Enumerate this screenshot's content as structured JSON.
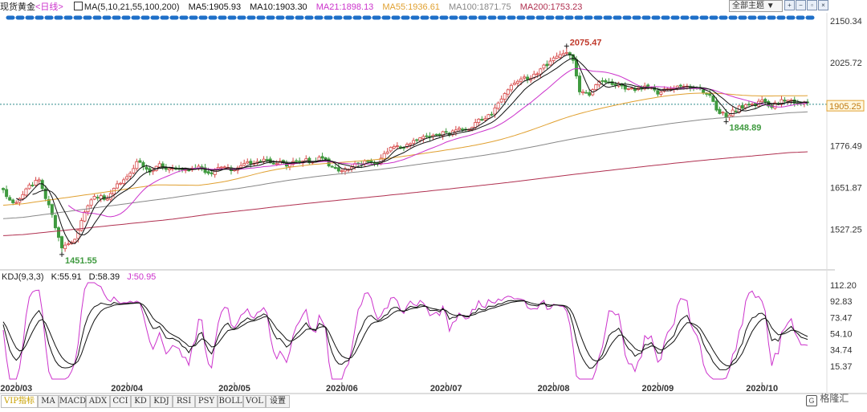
{
  "header": {
    "symbol": "现货黄金",
    "period": "<日线>",
    "ma_label": "MA(5,10,21,55,100,200)",
    "ma5": "MA5:1905.93",
    "ma10": "MA10:1903.30",
    "ma21": "MA21:1898.13",
    "ma55": "MA55:1936.61",
    "ma100": "MA100:1871.75",
    "ma200": "MA200:1753.23",
    "theme_select": "全部主题",
    "colors": {
      "ma5": "#111111",
      "ma10": "#111111",
      "ma21": "#cc33cc",
      "ma55": "#e0a030",
      "ma100": "#888888",
      "ma200": "#b03050"
    }
  },
  "kdj_header": {
    "label": "KDJ(9,3,3)",
    "k": "K:55.91",
    "d": "D:58.39",
    "j": "J:50.95",
    "colors": {
      "k": "#111111",
      "d": "#111111",
      "j": "#cc33cc"
    }
  },
  "tabs": [
    "VIP指标",
    "MA",
    "MACD",
    "ADX",
    "CCI",
    "KD",
    "KDJ",
    "RSI",
    "PSY",
    "BOLL",
    "VOL",
    "设置"
  ],
  "watermark": "格隆汇",
  "chart_data": {
    "type": "candlestick",
    "price_axis": {
      "ticks": [
        "2150.34",
        "2025.72",
        "1901.10",
        "1776.49",
        "1651.87",
        "1527.25"
      ],
      "ylim": [
        1420,
        2170
      ],
      "current_price": "1905.25",
      "reference_line": "1901.10"
    },
    "kdj_axis": {
      "ticks": [
        "112.20",
        "92.83",
        "73.47",
        "54.10",
        "34.74",
        "15.37"
      ],
      "ylim": [
        0,
        115
      ]
    },
    "x_labels": [
      "2020/03",
      "2020/04",
      "2020/05",
      "2020/06",
      "2020/07",
      "2020/08",
      "2020/09",
      "2020/10"
    ],
    "x_label_index": [
      4,
      38,
      71,
      104,
      136,
      169,
      201,
      233
    ],
    "annotations": [
      {
        "label": "2075.47",
        "index": 173,
        "value": 2075.47,
        "type": "high"
      },
      {
        "label": "1451.55",
        "index": 18,
        "value": 1451.55,
        "type": "low"
      },
      {
        "label": "1848.89",
        "index": 222,
        "value": 1848.89,
        "type": "low"
      }
    ],
    "anchors": [
      [
        0,
        1640
      ],
      [
        3,
        1600
      ],
      [
        7,
        1650
      ],
      [
        11,
        1680
      ],
      [
        15,
        1565
      ],
      [
        18,
        1470
      ],
      [
        22,
        1500
      ],
      [
        25,
        1580
      ],
      [
        28,
        1630
      ],
      [
        32,
        1615
      ],
      [
        35,
        1660
      ],
      [
        39,
        1690
      ],
      [
        41,
        1735
      ],
      [
        45,
        1700
      ],
      [
        48,
        1720
      ],
      [
        52,
        1705
      ],
      [
        56,
        1700
      ],
      [
        60,
        1710
      ],
      [
        63,
        1695
      ],
      [
        67,
        1715
      ],
      [
        71,
        1705
      ],
      [
        75,
        1725
      ],
      [
        79,
        1735
      ],
      [
        83,
        1730
      ],
      [
        87,
        1720
      ],
      [
        91,
        1735
      ],
      [
        95,
        1730
      ],
      [
        98,
        1740
      ],
      [
        101,
        1715
      ],
      [
        104,
        1700
      ],
      [
        107,
        1715
      ],
      [
        111,
        1725
      ],
      [
        115,
        1730
      ],
      [
        118,
        1765
      ],
      [
        121,
        1770
      ],
      [
        124,
        1775
      ],
      [
        128,
        1805
      ],
      [
        132,
        1810
      ],
      [
        136,
        1815
      ],
      [
        139,
        1820
      ],
      [
        143,
        1830
      ],
      [
        147,
        1860
      ],
      [
        150,
        1875
      ],
      [
        153,
        1920
      ],
      [
        156,
        1960
      ],
      [
        159,
        1975
      ],
      [
        162,
        1980
      ],
      [
        165,
        2005
      ],
      [
        168,
        2030
      ],
      [
        171,
        2055
      ],
      [
        173,
        2060
      ],
      [
        175,
        2035
      ],
      [
        177,
        1945
      ],
      [
        180,
        1935
      ],
      [
        183,
        1965
      ],
      [
        186,
        1970
      ],
      [
        189,
        1960
      ],
      [
        193,
        1945
      ],
      [
        197,
        1955
      ],
      [
        201,
        1935
      ],
      [
        205,
        1950
      ],
      [
        209,
        1955
      ],
      [
        213,
        1945
      ],
      [
        217,
        1935
      ],
      [
        219,
        1885
      ],
      [
        222,
        1865
      ],
      [
        226,
        1890
      ],
      [
        230,
        1900
      ],
      [
        233,
        1910
      ],
      [
        236,
        1895
      ],
      [
        240,
        1915
      ],
      [
        244,
        1910
      ],
      [
        247,
        1905
      ]
    ],
    "candle_count": 248,
    "ma_periods": [
      5,
      10,
      21,
      55,
      100,
      200
    ],
    "ma_start_values": {
      "ma55": 1595,
      "ma100": 1555,
      "ma200": 1505
    },
    "ma_end_values": {
      "ma55": 1936.61,
      "ma100": 1871.75,
      "ma200": 1753.23
    },
    "kdj_start": {
      "k": 68,
      "d": 70
    }
  }
}
